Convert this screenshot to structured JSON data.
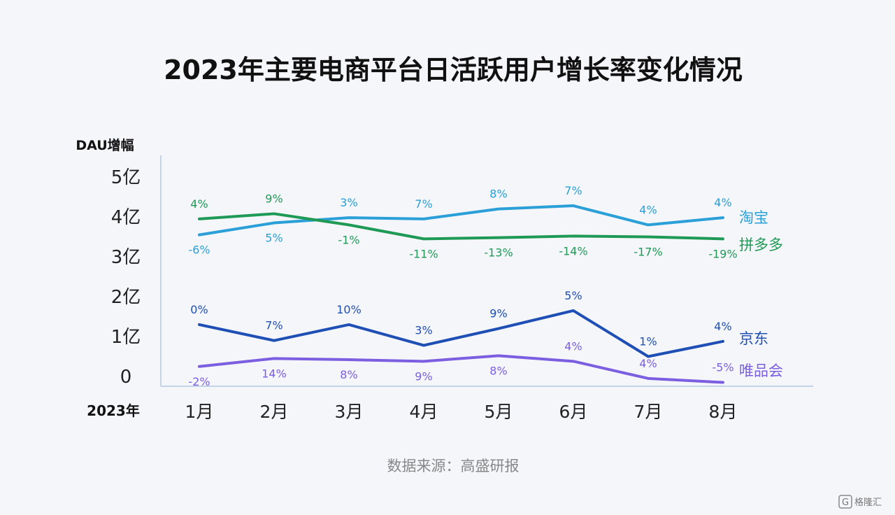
{
  "chart_data": {
    "type": "line",
    "title": "2023年主要电商平台日活跃用户增长率变化情况",
    "ylabel": "DAU增幅",
    "xlabel": "2023年",
    "categories": [
      "1月",
      "2月",
      "3月",
      "4月",
      "5月",
      "6月",
      "7月",
      "8月"
    ],
    "yticks": [
      "0",
      "1亿",
      "2亿",
      "3亿",
      "4亿",
      "5亿"
    ],
    "ylim": [
      0,
      5
    ],
    "grid": false,
    "legend": "right",
    "series": [
      {
        "name": "淘宝",
        "color": "#2a9fd8",
        "values": [
          3.55,
          3.85,
          3.98,
          3.95,
          4.2,
          4.28,
          3.8,
          3.98
        ],
        "labels": [
          "-6%",
          "5%",
          "3%",
          "7%",
          "8%",
          "7%",
          "4%",
          "4%"
        ]
      },
      {
        "name": "拼多多",
        "color": "#1f9a56",
        "values": [
          3.95,
          4.08,
          3.8,
          3.45,
          3.48,
          3.52,
          3.5,
          3.45
        ],
        "labels": [
          "4%",
          "9%",
          "-1%",
          "-11%",
          "-13%",
          "-14%",
          "-17%",
          "-19%"
        ]
      },
      {
        "name": "京东",
        "color": "#1e4fb5",
        "values": [
          1.3,
          0.9,
          1.3,
          0.78,
          1.2,
          1.65,
          0.5,
          0.88
        ],
        "labels": [
          "0%",
          "7%",
          "10%",
          "3%",
          "9%",
          "5%",
          "1%",
          "4%"
        ]
      },
      {
        "name": "唯品会",
        "color": "#7b5fe0",
        "values": [
          0.25,
          0.45,
          0.42,
          0.38,
          0.52,
          0.38,
          -0.05,
          -0.15
        ],
        "labels": [
          "-2%",
          "14%",
          "8%",
          "9%",
          "8%",
          "4%",
          "4%",
          "-5%"
        ]
      }
    ],
    "source": "数据来源：高盛研报"
  },
  "watermark": "格隆汇"
}
